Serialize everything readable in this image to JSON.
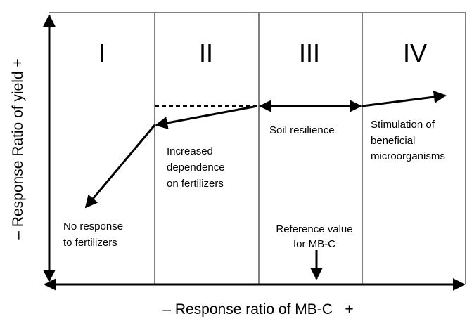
{
  "regions": [
    "I",
    "II",
    "III",
    "IV"
  ],
  "annotations": {
    "no_response": [
      "No response",
      "to fertilizers"
    ],
    "increased_dependence": [
      "Increased",
      "dependence",
      "on fertilizers"
    ],
    "soil_resilience": [
      "Soil resilience"
    ],
    "stimulation": [
      "Stimulation of",
      "beneficial",
      "microorganisms"
    ],
    "reference_value": [
      "Reference value",
      "for MB-C"
    ]
  },
  "axes": {
    "x_label": "– Response ratio of MB-C   +",
    "y_label": "– Response Ratio of yield +"
  }
}
